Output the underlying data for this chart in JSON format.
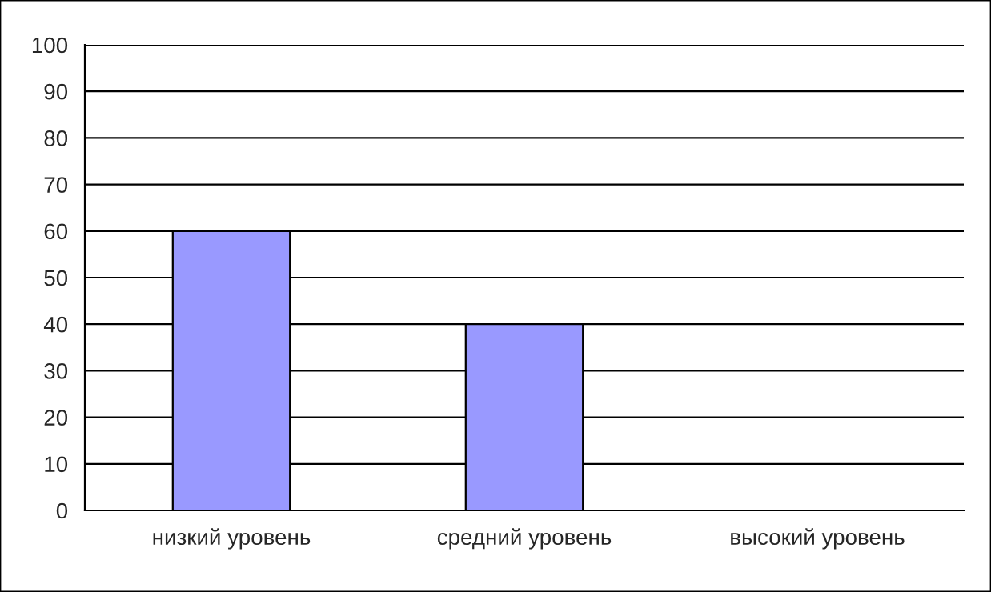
{
  "chart_data": {
    "type": "bar",
    "categories": [
      "низкий уровень",
      "средний уровень",
      "высокий уровень"
    ],
    "values": [
      60,
      40,
      null
    ],
    "color": "#9999ff",
    "ylim": [
      0,
      100
    ],
    "yticks": [
      0,
      10,
      20,
      30,
      40,
      50,
      60,
      70,
      80,
      90,
      100
    ],
    "grid": "y",
    "legend": false
  }
}
